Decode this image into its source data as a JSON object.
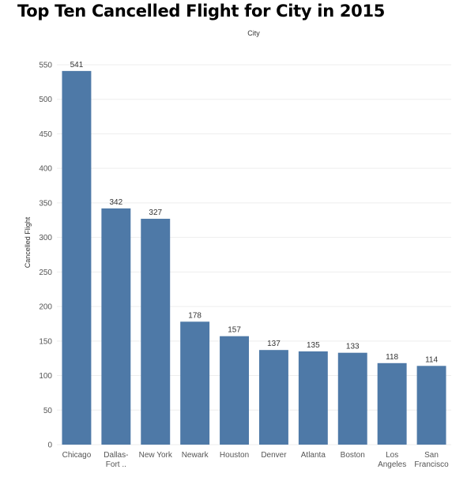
{
  "chart_data": {
    "type": "bar",
    "title": "Top Ten Cancelled Flight for City in 2015",
    "xlabel": "City",
    "ylabel": "Cancelled Flight",
    "categories": [
      [
        "Chicago"
      ],
      [
        "Dallas-",
        "Fort .."
      ],
      [
        "New York"
      ],
      [
        "Newark"
      ],
      [
        "Houston"
      ],
      [
        "Denver"
      ],
      [
        "Atlanta"
      ],
      [
        "Boston"
      ],
      [
        "Los",
        "Angeles"
      ],
      [
        "San",
        "Francisco"
      ]
    ],
    "values": [
      541,
      342,
      327,
      178,
      157,
      137,
      135,
      133,
      118,
      114
    ],
    "ylim": [
      0,
      550
    ],
    "yticks": [
      0,
      50,
      100,
      150,
      200,
      250,
      300,
      350,
      400,
      450,
      500,
      550
    ],
    "grid": true,
    "legend": "none",
    "colors": {
      "bar": "#4e79a7",
      "grid": "#eeeeee"
    }
  }
}
